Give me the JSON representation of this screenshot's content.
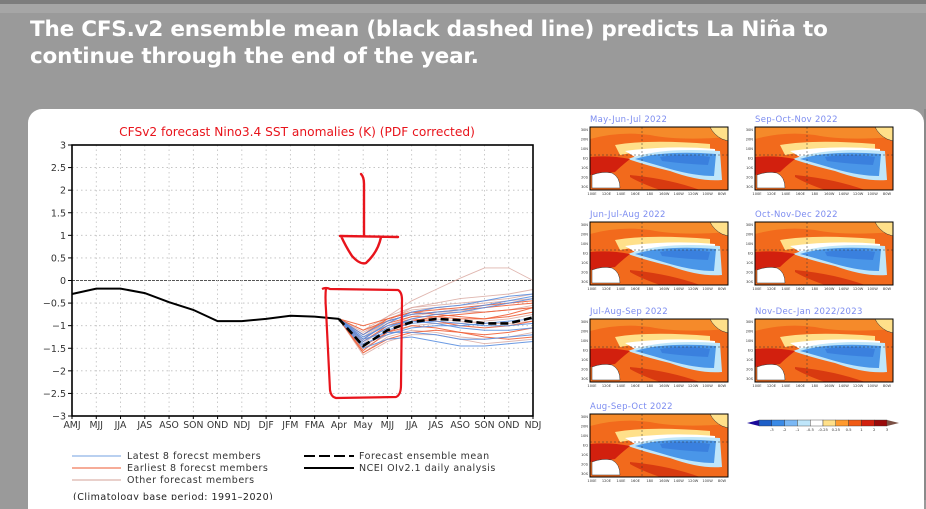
{
  "slide": {
    "title": "The CFS.v2 ensemble mean (black dashed line) predicts La Niña to continue through the end of the year."
  },
  "chart_data": {
    "type": "line",
    "title": "CFSv2 forecast Nino3.4 SST anomalies (K) (PDF corrected)",
    "xlabel": "",
    "ylabel": "",
    "ylim": [
      -3,
      3
    ],
    "yticks": [
      "3",
      "2.5",
      "2",
      "1.5",
      "1",
      "0.5",
      "0",
      "−0.5",
      "−1",
      "−1.5",
      "−2",
      "−2.5",
      "−3"
    ],
    "ytick_values": [
      3,
      2.5,
      2,
      1.5,
      1,
      0.5,
      0,
      -0.5,
      -1,
      -1.5,
      -2,
      -2.5,
      -3
    ],
    "categories": [
      "AMJ",
      "MJJ",
      "JJA",
      "JAS",
      "ASO",
      "SON",
      "OND",
      "NDJ",
      "DJF",
      "JFM",
      "FMA",
      "Apr",
      "May",
      "MJJ",
      "JJA",
      "JAS",
      "ASO",
      "SON",
      "OND",
      "NDJ"
    ],
    "grid": true,
    "series": [
      {
        "name": "NCEI OIv2.1 daily analysis",
        "style": "solid",
        "color": "#000000",
        "x": [
          0,
          1,
          2,
          3,
          4,
          5,
          6,
          7,
          8,
          9,
          10,
          11
        ],
        "values": [
          -0.3,
          -0.18,
          -0.18,
          -0.28,
          -0.48,
          -0.65,
          -0.9,
          -0.9,
          -0.85,
          -0.78,
          -0.8,
          -0.85
        ]
      },
      {
        "name": "Forecast ensemble mean",
        "style": "dashed",
        "color": "#000000",
        "x": [
          11,
          12,
          13,
          14,
          15,
          16,
          17,
          18,
          19
        ],
        "values": [
          -0.85,
          -1.45,
          -1.1,
          -0.92,
          -0.85,
          -0.88,
          -0.95,
          -0.95,
          -0.82
        ]
      },
      {
        "name": "Latest 8 forecst members",
        "color": "#5b8fe0",
        "members": [
          [
            -0.85,
            -1.3,
            -0.95,
            -0.7,
            -0.6,
            -0.55,
            -0.45,
            -0.35,
            -0.3
          ],
          [
            -0.85,
            -1.35,
            -1.05,
            -0.85,
            -0.75,
            -0.7,
            -0.6,
            -0.5,
            -0.4
          ],
          [
            -0.85,
            -1.4,
            -1.2,
            -1.05,
            -1.0,
            -1.0,
            -0.95,
            -0.9,
            -0.85
          ],
          [
            -0.85,
            -1.25,
            -1.0,
            -0.9,
            -0.95,
            -1.05,
            -1.1,
            -1.1,
            -1.05
          ],
          [
            -0.85,
            -1.5,
            -1.3,
            -1.25,
            -1.35,
            -1.45,
            -1.45,
            -1.4,
            -1.35
          ],
          [
            -0.85,
            -1.3,
            -1.15,
            -1.15,
            -1.2,
            -1.3,
            -1.3,
            -1.25,
            -1.2
          ],
          [
            -0.85,
            -1.2,
            -0.9,
            -0.75,
            -0.7,
            -0.65,
            -0.55,
            -0.45,
            -0.35
          ],
          [
            -0.85,
            -1.45,
            -1.1,
            -0.95,
            -0.9,
            -0.95,
            -1.0,
            -1.0,
            -0.95
          ]
        ]
      },
      {
        "name": "Earliest 8 forecst members",
        "color": "#f0603a",
        "members": [
          [
            -0.85,
            -1.1,
            -0.9,
            -0.75,
            -0.7,
            -0.65,
            -0.6,
            -0.55,
            -0.5
          ],
          [
            -0.85,
            -1.55,
            -1.15,
            -0.9,
            -0.8,
            -0.75,
            -0.7,
            -0.65,
            -0.6
          ],
          [
            -0.85,
            -1.2,
            -0.85,
            -0.7,
            -0.75,
            -0.8,
            -0.85,
            -0.8,
            -0.7
          ],
          [
            -0.85,
            -1.6,
            -1.3,
            -1.15,
            -1.1,
            -1.15,
            -1.2,
            -1.15,
            -1.05
          ],
          [
            -0.85,
            -1.3,
            -0.95,
            -0.8,
            -0.8,
            -0.85,
            -0.85,
            -0.75,
            -0.6
          ],
          [
            -0.85,
            -1.0,
            -0.85,
            -0.7,
            -0.65,
            -0.6,
            -0.55,
            -0.5,
            -0.45
          ],
          [
            -0.85,
            -1.45,
            -1.15,
            -1.0,
            -1.05,
            -1.15,
            -1.25,
            -1.3,
            -1.25
          ],
          [
            -0.85,
            -1.35,
            -1.0,
            -0.85,
            -0.9,
            -1.0,
            -1.05,
            -1.0,
            -0.9
          ]
        ]
      },
      {
        "name": "Other forecast members",
        "color": "#d9a8a0",
        "members": [
          [
            -0.85,
            -1.2,
            -0.8,
            -0.45,
            -0.2,
            0.05,
            0.28,
            0.28,
            0.0
          ],
          [
            -0.85,
            -1.3,
            -0.9,
            -0.6,
            -0.5,
            -0.4,
            -0.35,
            -0.3,
            -0.2
          ],
          [
            -0.85,
            -1.5,
            -1.2,
            -1.0,
            -0.95,
            -0.95,
            -0.9,
            -0.85,
            -0.75
          ],
          [
            -0.85,
            -1.4,
            -1.0,
            -0.8,
            -0.7,
            -0.7,
            -0.7,
            -0.65,
            -0.6
          ],
          [
            -0.85,
            -1.6,
            -1.25,
            -1.1,
            -1.15,
            -1.25,
            -1.3,
            -1.25,
            -1.15
          ],
          [
            -0.85,
            -1.1,
            -0.8,
            -0.6,
            -0.55,
            -0.5,
            -0.45,
            -0.4,
            -0.3
          ],
          [
            -0.85,
            -1.35,
            -1.05,
            -0.9,
            -0.85,
            -0.9,
            -0.95,
            -0.95,
            -0.9
          ],
          [
            -0.85,
            -1.25,
            -0.9,
            -0.75,
            -0.6,
            -0.55,
            -0.5,
            -0.45,
            -0.4
          ],
          [
            -0.85,
            -1.65,
            -1.35,
            -1.2,
            -1.2,
            -1.3,
            -1.4,
            -1.35,
            -1.3
          ],
          [
            -0.85,
            -1.15,
            -0.85,
            -0.65,
            -0.6,
            -0.65,
            -0.7,
            -0.65,
            -0.55
          ]
        ]
      }
    ],
    "legend": [
      {
        "label": "Latest 8 forecst members",
        "color": "#8fb4e6",
        "style": "solid"
      },
      {
        "label": "Earliest 8 forecst members",
        "color": "#f07a5a",
        "style": "solid"
      },
      {
        "label": "Other forecast members",
        "color": "#dcb4ac",
        "style": "solid"
      },
      {
        "label": "Forecast ensemble mean",
        "color": "#000000",
        "style": "dashed"
      },
      {
        "label": "NCEI OIv2.1 daily analysis",
        "color": "#000000",
        "style": "solid"
      }
    ],
    "legend_position": "bottom",
    "footnote": "(Climatology base period: 1991–2020)",
    "annotations": [
      {
        "type": "arrow",
        "color": "#e8141c",
        "points_to": "May"
      },
      {
        "type": "box",
        "color": "#e8141c",
        "x_range": [
          "FMA",
          "MJJ"
        ],
        "y_range": [
          -2.5,
          0
        ]
      }
    ]
  },
  "maps": {
    "panels": [
      {
        "title": "May-Jun-Jul  2022"
      },
      {
        "title": "Sep-Oct-Nov  2022"
      },
      {
        "title": "Jun-Jul-Aug  2022"
      },
      {
        "title": "Oct-Nov-Dec  2022"
      },
      {
        "title": "Jul-Aug-Sep  2022"
      },
      {
        "title": "Nov-Dec-Jan  2022/2023"
      },
      {
        "title": "Aug-Sep-Oct  2022"
      }
    ],
    "lat_labels": [
      "30N",
      "20N",
      "10N",
      "EQ",
      "10S",
      "20S",
      "30S"
    ],
    "lon_labels": [
      "100E",
      "120E",
      "140E",
      "160E",
      "180",
      "160W",
      "140W",
      "120W",
      "100W",
      "80W"
    ],
    "colorbar": {
      "labels": [
        "-3",
        "-2",
        "-1",
        "-0.5",
        "-0.25",
        "0.25",
        "0.5",
        "1",
        "2",
        "3"
      ],
      "colors": [
        "#1a0a9a",
        "#1e5fc8",
        "#3a8ae6",
        "#7ab8f5",
        "#bfe6fa",
        "#ffffff",
        "#ffe08a",
        "#ff9a2e",
        "#f05a14",
        "#d2200e",
        "#9a0a0a",
        "#7a5044"
      ]
    }
  }
}
